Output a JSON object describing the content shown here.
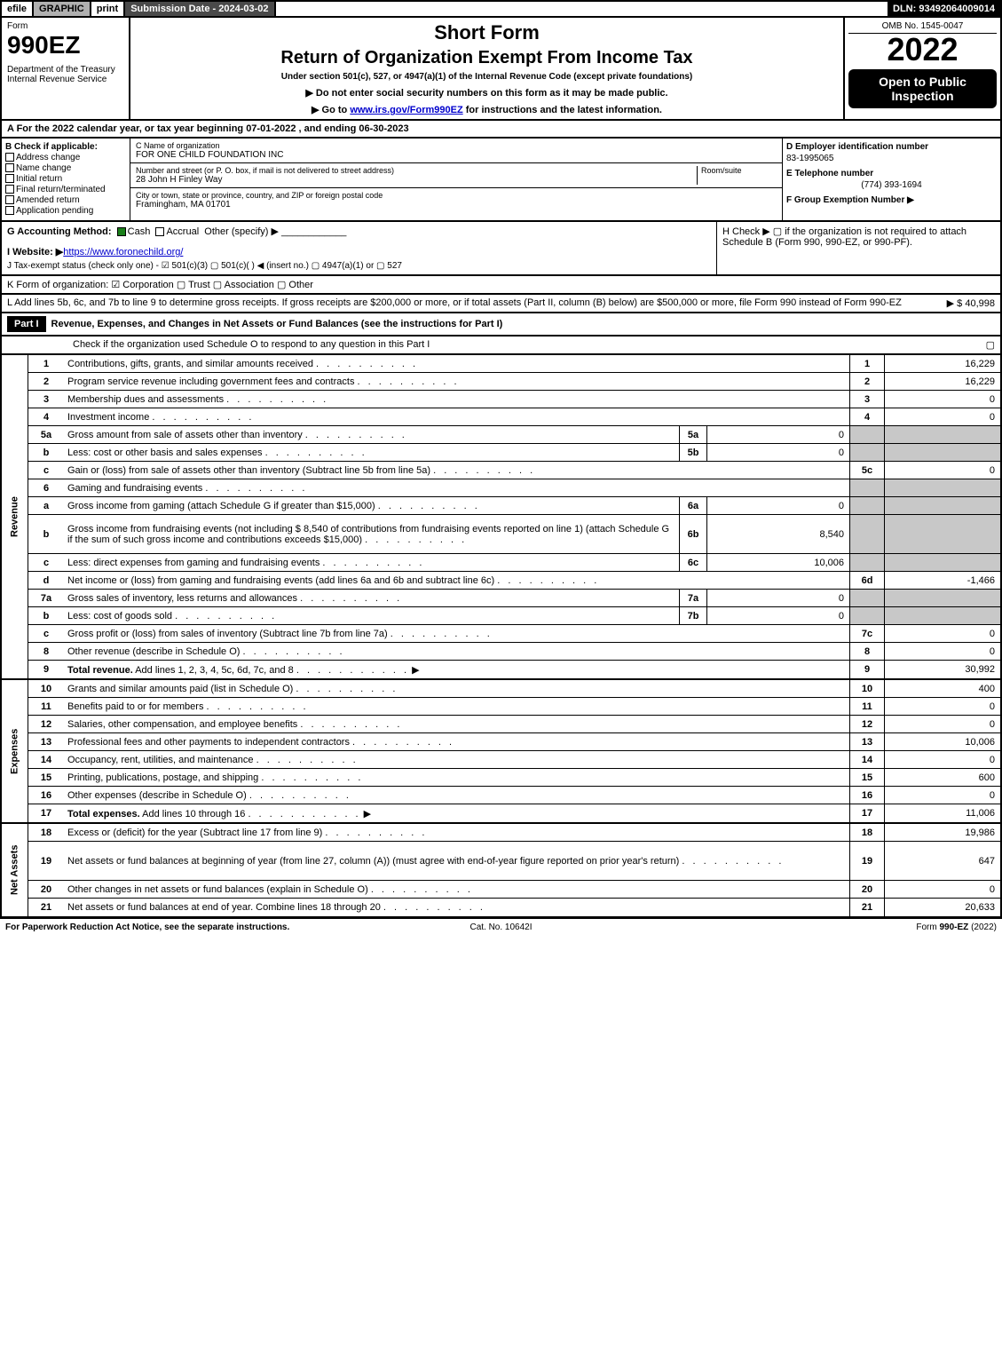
{
  "topbar": {
    "efile": "efile",
    "graphic": "GRAPHIC",
    "print": "print",
    "submission": "Submission Date - 2024-03-02",
    "dln": "DLN: 93492064009014"
  },
  "header": {
    "form_word": "Form",
    "form_num": "990EZ",
    "dept": "Department of the Treasury\nInternal Revenue Service",
    "short": "Short Form",
    "title": "Return of Organization Exempt From Income Tax",
    "subtitle": "Under section 501(c), 527, or 4947(a)(1) of the Internal Revenue Code (except private foundations)",
    "instr1": "▶ Do not enter social security numbers on this form as it may be made public.",
    "instr2": "▶ Go to www.irs.gov/Form990EZ for instructions and the latest information.",
    "omb": "OMB No. 1545-0047",
    "year": "2022",
    "open": "Open to Public Inspection"
  },
  "A": {
    "text": "A  For the 2022 calendar year, or tax year beginning 07-01-2022 , and ending 06-30-2023"
  },
  "B": {
    "label": "B  Check if applicable:",
    "opts": [
      "Address change",
      "Name change",
      "Initial return",
      "Final return/terminated",
      "Amended return",
      "Application pending"
    ]
  },
  "C": {
    "name_lbl": "C Name of organization",
    "name": "FOR ONE CHILD FOUNDATION INC",
    "addr_lbl": "Number and street (or P. O. box, if mail is not delivered to street address)",
    "room_lbl": "Room/suite",
    "addr": "28 John H Finley Way",
    "city_lbl": "City or town, state or province, country, and ZIP or foreign postal code",
    "city": "Framingham, MA  01701"
  },
  "D": {
    "lbl": "D Employer identification number",
    "val": "83-1995065"
  },
  "E": {
    "lbl": "E Telephone number",
    "val": "(774) 393-1694"
  },
  "F": {
    "lbl": "F Group Exemption Number   ▶"
  },
  "G": {
    "lbl": "G Accounting Method:",
    "cash": "Cash",
    "accrual": "Accrual",
    "other": "Other (specify) ▶"
  },
  "H": {
    "text": "H  Check ▶  ▢  if the organization is not required to attach Schedule B (Form 990, 990-EZ, or 990-PF)."
  },
  "I": {
    "lbl": "I Website: ▶",
    "url": "https://www.foronechild.org/"
  },
  "J": {
    "text": "J Tax-exempt status (check only one) -  ☑ 501(c)(3)  ▢ 501(c)(  ) ◀ (insert no.)  ▢ 4947(a)(1) or  ▢ 527"
  },
  "K": {
    "text": "K Form of organization:   ☑ Corporation   ▢ Trust   ▢ Association   ▢ Other"
  },
  "L": {
    "text": "L Add lines 5b, 6c, and 7b to line 9 to determine gross receipts. If gross receipts are $200,000 or more, or if total assets (Part II, column (B) below) are $500,000 or more, file Form 990 instead of Form 990-EZ",
    "amt": "▶ $ 40,998"
  },
  "part1": {
    "hdr": "Part I",
    "title": "Revenue, Expenses, and Changes in Net Assets or Fund Balances (see the instructions for Part I)",
    "check": "Check if the organization used Schedule O to respond to any question in this Part I",
    "checkval": "▢"
  },
  "side": {
    "rev": "Revenue",
    "exp": "Expenses",
    "na": "Net Assets"
  },
  "rows": [
    {
      "n": "1",
      "d": "Contributions, gifts, grants, and similar amounts received",
      "box": "1",
      "v": "16,229"
    },
    {
      "n": "2",
      "d": "Program service revenue including government fees and contracts",
      "box": "2",
      "v": "16,229"
    },
    {
      "n": "3",
      "d": "Membership dues and assessments",
      "box": "3",
      "v": "0"
    },
    {
      "n": "4",
      "d": "Investment income",
      "box": "4",
      "v": "0"
    },
    {
      "n": "5a",
      "d": "Gross amount from sale of assets other than inventory",
      "sub": "5a",
      "sv": "0",
      "shade": true
    },
    {
      "n": "b",
      "d": "Less: cost or other basis and sales expenses",
      "sub": "5b",
      "sv": "0",
      "shade": true
    },
    {
      "n": "c",
      "d": "Gain or (loss) from sale of assets other than inventory (Subtract line 5b from line 5a)",
      "box": "5c",
      "v": "0"
    },
    {
      "n": "6",
      "d": "Gaming and fundraising events",
      "shade": true,
      "noval": true
    },
    {
      "n": "a",
      "d": "Gross income from gaming (attach Schedule G if greater than $15,000)",
      "sub": "6a",
      "sv": "0",
      "shade": true
    },
    {
      "n": "b",
      "d": "Gross income from fundraising events (not including $  8,540          of contributions from fundraising events reported on line 1) (attach Schedule G if the sum of such gross income and contributions exceeds $15,000)",
      "sub": "6b",
      "sv": "8,540",
      "shade": true,
      "tall": true
    },
    {
      "n": "c",
      "d": "Less: direct expenses from gaming and fundraising events",
      "sub": "6c",
      "sv": "10,006",
      "shade": true
    },
    {
      "n": "d",
      "d": "Net income or (loss) from gaming and fundraising events (add lines 6a and 6b and subtract line 6c)",
      "box": "6d",
      "v": "-1,466"
    },
    {
      "n": "7a",
      "d": "Gross sales of inventory, less returns and allowances",
      "sub": "7a",
      "sv": "0",
      "shade": true
    },
    {
      "n": "b",
      "d": "Less: cost of goods sold",
      "sub": "7b",
      "sv": "0",
      "shade": true
    },
    {
      "n": "c",
      "d": "Gross profit or (loss) from sales of inventory (Subtract line 7b from line 7a)",
      "box": "7c",
      "v": "0"
    },
    {
      "n": "8",
      "d": "Other revenue (describe in Schedule O)",
      "box": "8",
      "v": "0"
    },
    {
      "n": "9",
      "d": "Total revenue. Add lines 1, 2, 3, 4, 5c, 6d, 7c, and 8",
      "box": "9",
      "v": "30,992",
      "bold": true,
      "arrow": true
    }
  ],
  "exp_rows": [
    {
      "n": "10",
      "d": "Grants and similar amounts paid (list in Schedule O)",
      "box": "10",
      "v": "400"
    },
    {
      "n": "11",
      "d": "Benefits paid to or for members",
      "box": "11",
      "v": "0"
    },
    {
      "n": "12",
      "d": "Salaries, other compensation, and employee benefits",
      "box": "12",
      "v": "0"
    },
    {
      "n": "13",
      "d": "Professional fees and other payments to independent contractors",
      "box": "13",
      "v": "10,006"
    },
    {
      "n": "14",
      "d": "Occupancy, rent, utilities, and maintenance",
      "box": "14",
      "v": "0"
    },
    {
      "n": "15",
      "d": "Printing, publications, postage, and shipping",
      "box": "15",
      "v": "600"
    },
    {
      "n": "16",
      "d": "Other expenses (describe in Schedule O)",
      "box": "16",
      "v": "0"
    },
    {
      "n": "17",
      "d": "Total expenses. Add lines 10 through 16",
      "box": "17",
      "v": "11,006",
      "bold": true,
      "arrow": true
    }
  ],
  "na_rows": [
    {
      "n": "18",
      "d": "Excess or (deficit) for the year (Subtract line 17 from line 9)",
      "box": "18",
      "v": "19,986"
    },
    {
      "n": "19",
      "d": "Net assets or fund balances at beginning of year (from line 27, column (A)) (must agree with end-of-year figure reported on prior year's return)",
      "box": "19",
      "v": "647",
      "tall": true
    },
    {
      "n": "20",
      "d": "Other changes in net assets or fund balances (explain in Schedule O)",
      "box": "20",
      "v": "0"
    },
    {
      "n": "21",
      "d": "Net assets or fund balances at end of year. Combine lines 18 through 20",
      "box": "21",
      "v": "20,633"
    }
  ],
  "footer": {
    "l": "For Paperwork Reduction Act Notice, see the separate instructions.",
    "c": "Cat. No. 10642I",
    "r": "Form 990-EZ (2022)"
  }
}
